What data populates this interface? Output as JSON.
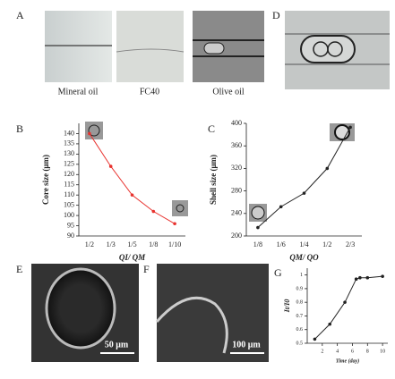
{
  "panels": [
    {
      "label": "A",
      "captions": [
        "Mineral oil",
        "FC40",
        "Olive oil"
      ]
    },
    {
      "label": "D"
    },
    {
      "label": "E",
      "scale_bar": "50 μm"
    },
    {
      "label": "F",
      "scale_bar": "100 μm"
    }
  ],
  "chart_data": [
    {
      "type": "line",
      "panel_label": "B",
      "categories": [
        "1/2",
        "1/3",
        "1/5",
        "1/8",
        "1/10"
      ],
      "values": [
        140,
        124,
        110,
        102,
        96
      ],
      "color": "#e8322e",
      "ylim": [
        90,
        145
      ],
      "yticks": [
        90,
        95,
        100,
        105,
        110,
        115,
        120,
        125,
        130,
        135,
        140
      ],
      "y_label": "Core size (μm)",
      "x_label": "QI/ QM"
    },
    {
      "type": "line",
      "panel_label": "C",
      "categories": [
        "1/8",
        "1/6",
        "1/4",
        "1/2",
        "2/3"
      ],
      "values": [
        215,
        252,
        276,
        320,
        393
      ],
      "color": "#222222",
      "ylim": [
        200,
        400
      ],
      "yticks": [
        200,
        240,
        280,
        320,
        360,
        400
      ],
      "y_label": "Shell size (μm)",
      "x_label": "QM/ QO"
    },
    {
      "type": "scatter-line",
      "panel_label": "G",
      "x": [
        1,
        3,
        5,
        6.5,
        7,
        8,
        10
      ],
      "values": [
        0.53,
        0.64,
        0.8,
        0.97,
        0.98,
        0.98,
        0.99
      ],
      "color": "#222222",
      "xlim": [
        0,
        10.7
      ],
      "xticks": [
        2,
        4,
        6,
        8,
        10
      ],
      "ylim": [
        0.5,
        1.05
      ],
      "yticks": [
        0.5,
        0.6,
        0.7,
        0.8,
        0.9,
        1
      ],
      "y_label": "It/I0",
      "x_label": "Time (day)"
    }
  ]
}
